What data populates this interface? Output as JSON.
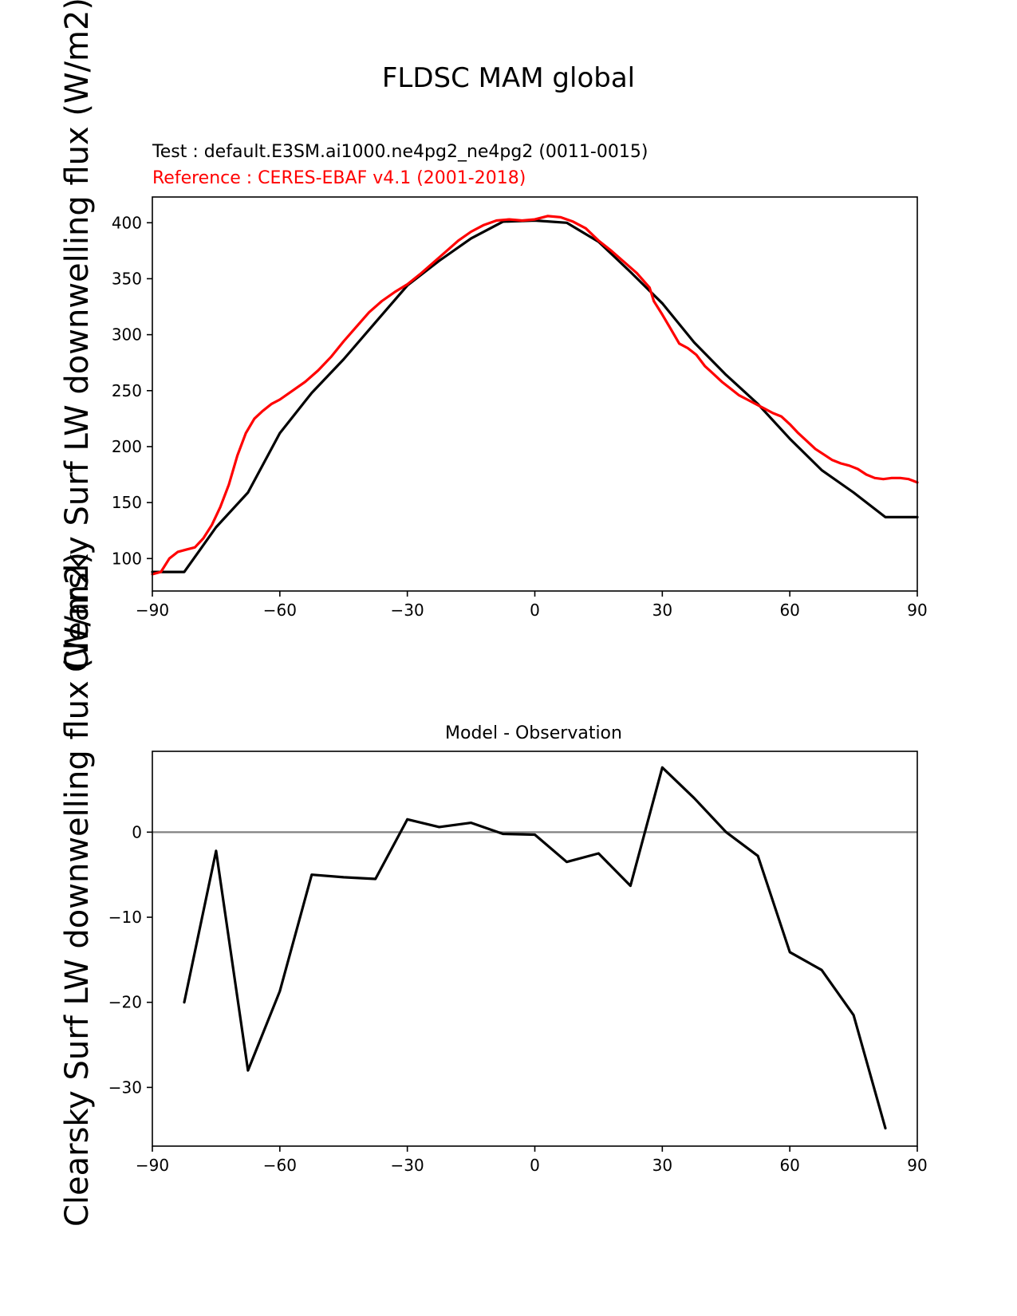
{
  "figure": {
    "suptitle": "FLDSC MAM global"
  },
  "chart_data": [
    {
      "type": "line",
      "test_label": "Test : default.E3SM.ai1000.ne4pg2_ne4pg2 (0011-0015)",
      "reference_label": "Reference : CERES-EBAF v4.1 (2001-2018)",
      "ylabel": "Clearsky Surf LW downwelling flux (W/m2)",
      "xlim": [
        -90,
        90
      ],
      "ylim": [
        71,
        423
      ],
      "xticks": [
        -90,
        -60,
        -30,
        0,
        30,
        60,
        90
      ],
      "yticks": [
        100,
        150,
        200,
        250,
        300,
        350,
        400
      ],
      "grid": false,
      "series": [
        {
          "role": "test",
          "color": "#000000",
          "x": [
            -90,
            -82.5,
            -75,
            -67.5,
            -60,
            -52.5,
            -45,
            -37.5,
            -30,
            -22.5,
            -15,
            -7.5,
            0,
            7.5,
            15,
            22.5,
            30,
            37.5,
            45,
            52.5,
            60,
            67.5,
            75,
            82.5,
            90
          ],
          "y": [
            88,
            88,
            128,
            159,
            212,
            248,
            278,
            311,
            344,
            366,
            386,
            401,
            402,
            400,
            383,
            356,
            328,
            293,
            264,
            238,
            207,
            179,
            159,
            137,
            137
          ]
        },
        {
          "role": "reference",
          "color": "#ff0000",
          "x": [
            -90,
            -88,
            -86,
            -84,
            -82,
            -80,
            -78,
            -76,
            -74,
            -72,
            -70,
            -68,
            -66,
            -64,
            -62,
            -60,
            -57,
            -54,
            -51,
            -48,
            -45,
            -42,
            -39,
            -36,
            -33,
            -30,
            -27,
            -24,
            -21,
            -18,
            -15,
            -12,
            -9,
            -6,
            -3,
            0,
            3,
            6,
            9,
            12,
            15,
            18,
            21,
            24,
            27,
            28,
            30,
            32,
            34,
            36,
            38,
            40,
            42,
            44,
            46,
            48,
            50,
            52,
            54,
            56,
            58,
            60,
            62,
            64,
            66,
            68,
            70,
            72,
            74,
            76,
            78,
            80,
            82,
            84,
            86,
            88,
            90
          ],
          "y": [
            86,
            88,
            100,
            106,
            108,
            110,
            118,
            130,
            146,
            166,
            192,
            212,
            225,
            232,
            238,
            242,
            250,
            258,
            268,
            280,
            294,
            307,
            320,
            330,
            338,
            345,
            354,
            364,
            374,
            384,
            392,
            398,
            402,
            403,
            402,
            403,
            406,
            405,
            401,
            395,
            384,
            375,
            365,
            355,
            342,
            330,
            318,
            305,
            292,
            288,
            282,
            272,
            265,
            258,
            252,
            246,
            242,
            238,
            234,
            230,
            227,
            220,
            212,
            205,
            198,
            193,
            188,
            185,
            183,
            180,
            175,
            172,
            171,
            172,
            172,
            171,
            168
          ]
        }
      ]
    },
    {
      "type": "line",
      "title": "Model - Observation",
      "ylabel": "Clearsky Surf LW downwelling flux (W/m2)",
      "xlim": [
        -90,
        90
      ],
      "ylim": [
        -36.9,
        9.5
      ],
      "xticks": [
        -90,
        -60,
        -30,
        0,
        30,
        60,
        90
      ],
      "yticks": [
        -30,
        -20,
        -10,
        0
      ],
      "grid": false,
      "zero_line_color": "#808080",
      "series": [
        {
          "role": "difference",
          "color": "#000000",
          "x": [
            -82.5,
            -75,
            -67.5,
            -60,
            -52.5,
            -45,
            -37.5,
            -30,
            -22.5,
            -15,
            -7.5,
            0,
            7.5,
            15,
            22.5,
            30,
            37.5,
            45,
            52.5,
            60,
            67.5,
            75,
            82.5
          ],
          "y": [
            -20,
            -2.2,
            -28,
            -18.7,
            -5,
            -5.3,
            -5.5,
            1.5,
            0.6,
            1.1,
            -0.2,
            -0.3,
            -3.5,
            -2.5,
            -6.3,
            7.6,
            4,
            0,
            -2.8,
            -14.1,
            -16.2,
            -21.5,
            -34.8
          ]
        }
      ]
    }
  ]
}
